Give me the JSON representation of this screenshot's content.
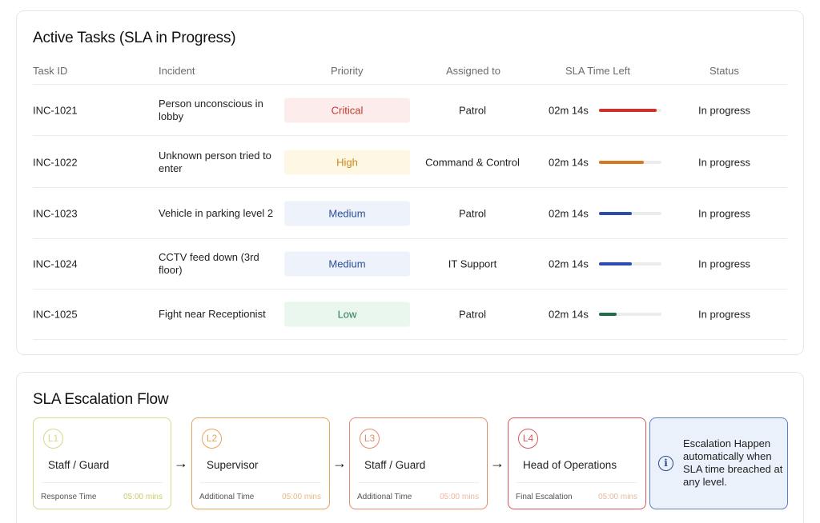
{
  "tasks": {
    "title": "Active Tasks (SLA in Progress)",
    "headers": {
      "id": "Task ID",
      "incident": "Incident",
      "priority": "Priority",
      "assigned": "Assigned to",
      "sla": "SLA Time Left",
      "status": "Status"
    },
    "rows": [
      {
        "id": "INC-1021",
        "incident": "Person unconscious in lobby",
        "priority": "Critical",
        "assigned": "Patrol",
        "sla": "02m 14s",
        "sla_fraction": 0.92,
        "status": "In progress"
      },
      {
        "id": "INC-1022",
        "incident": "Unknown person tried to enter",
        "priority": "High",
        "assigned": "Command & Control",
        "sla": "02m 14s",
        "sla_fraction": 0.72,
        "status": "In progress"
      },
      {
        "id": "INC-1023",
        "incident": "Vehicle in parking level 2",
        "priority": "Medium",
        "assigned": "Patrol",
        "sla": "02m 14s",
        "sla_fraction": 0.52,
        "status": "In progress"
      },
      {
        "id": "INC-1024",
        "incident": "CCTV feed down (3rd floor)",
        "priority": "Medium",
        "assigned": "IT Support",
        "sla": "02m 14s",
        "sla_fraction": 0.52,
        "status": "In progress"
      },
      {
        "id": "INC-1025",
        "incident": "Fight near Receptionist",
        "priority": "Low",
        "assigned": "Patrol",
        "sla": "02m 14s",
        "sla_fraction": 0.28,
        "status": "In progress"
      }
    ]
  },
  "priority_styles": {
    "Critical": {
      "bg": "#fdecec",
      "fg": "#c0392b",
      "bar": "#d0302b"
    },
    "High": {
      "bg": "#fdf7e3",
      "fg": "#c98a1e",
      "bar": "#d4791f"
    },
    "Medium": {
      "bg": "#edf2fb",
      "fg": "#2a4f9a",
      "bar": "#2c4bb0"
    },
    "Low": {
      "bg": "#e9f7ef",
      "fg": "#2a7a4e",
      "bar": "#1f6d4a"
    }
  },
  "escalation": {
    "title": "SLA Escalation Flow",
    "steps": [
      {
        "level": "L1",
        "name": "Staff / Guard",
        "footer": "Response Time",
        "time": "05:00 mins",
        "color": "#d7d98a",
        "time_color": "#c9cc6e"
      },
      {
        "level": "L2",
        "name": "Supervisor",
        "footer": "Additional Time",
        "time": "05:00 mins",
        "color": "#e8a45a",
        "time_color": "#e8b985"
      },
      {
        "level": "L3",
        "name": "Staff / Guard",
        "footer": "Additional Time",
        "time": "05:00 mins",
        "color": "#e58a6b",
        "time_color": "#eeb79f"
      },
      {
        "level": "L4",
        "name": "Head of Operations",
        "footer": "Final Escalation",
        "time": "05:00 mins",
        "color": "#d8595a",
        "time_color": "#e8b9a0"
      }
    ],
    "arrow": "→",
    "info_icon": "info-icon",
    "info_text": "Escalation Happen automatically when SLA time breached at any level."
  }
}
